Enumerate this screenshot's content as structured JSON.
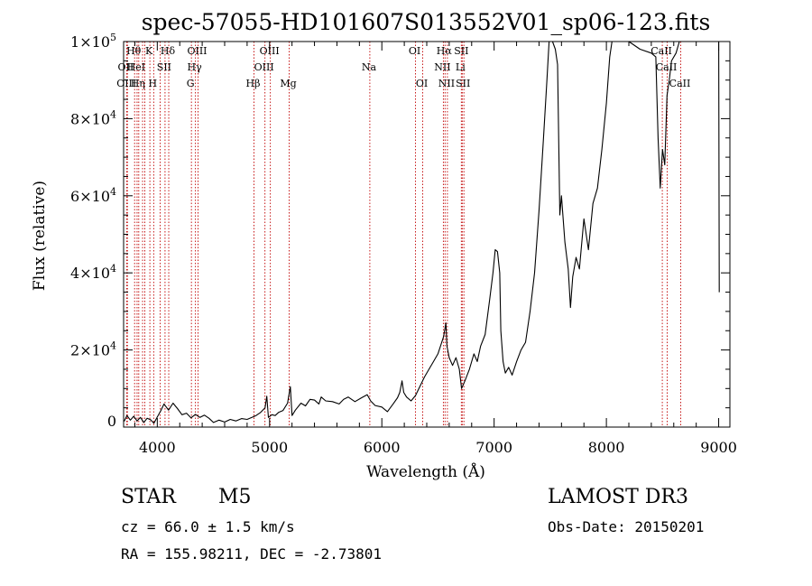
{
  "chart_data": {
    "type": "line",
    "title": "spec-57055-HD101607S013552V01_sp06-123.fits",
    "xlabel": "Wavelength (Å)",
    "ylabel": "Flux (relative)",
    "xlim": [
      3700,
      9100
    ],
    "ylim": [
      0,
      100000
    ],
    "xticks": [
      4000,
      5000,
      6000,
      7000,
      8000,
      9000
    ],
    "yticks": [
      {
        "value": 0,
        "mant": "0",
        "exp": ""
      },
      {
        "value": 20000,
        "mant": "2×10",
        "exp": "4"
      },
      {
        "value": 40000,
        "mant": "4×10",
        "exp": "4"
      },
      {
        "value": 60000,
        "mant": "6×10",
        "exp": "4"
      },
      {
        "value": 80000,
        "mant": "8×10",
        "exp": "4"
      },
      {
        "value": 100000,
        "mant": "1×10",
        "exp": "5"
      }
    ],
    "line_color": "#000000",
    "marker_color": "#c00000",
    "spectrum": [
      [
        3705,
        1500
      ],
      [
        3730,
        3000
      ],
      [
        3760,
        1800
      ],
      [
        3790,
        2800
      ],
      [
        3820,
        1600
      ],
      [
        3850,
        2500
      ],
      [
        3880,
        1200
      ],
      [
        3910,
        2300
      ],
      [
        3940,
        1900
      ],
      [
        3970,
        1000
      ],
      [
        4000,
        2600
      ],
      [
        4030,
        4200
      ],
      [
        4060,
        6000
      ],
      [
        4100,
        4400
      ],
      [
        4140,
        6200
      ],
      [
        4180,
        4800
      ],
      [
        4220,
        3200
      ],
      [
        4260,
        3600
      ],
      [
        4300,
        2400
      ],
      [
        4340,
        3300
      ],
      [
        4380,
        2500
      ],
      [
        4420,
        3100
      ],
      [
        4460,
        2300
      ],
      [
        4500,
        1200
      ],
      [
        4550,
        1800
      ],
      [
        4600,
        1300
      ],
      [
        4650,
        2000
      ],
      [
        4700,
        1600
      ],
      [
        4750,
        2200
      ],
      [
        4800,
        2000
      ],
      [
        4850,
        2600
      ],
      [
        4880,
        3000
      ],
      [
        4920,
        3800
      ],
      [
        4960,
        5000
      ],
      [
        4975,
        8000
      ],
      [
        4990,
        2500
      ],
      [
        5020,
        3200
      ],
      [
        5050,
        3000
      ],
      [
        5080,
        3800
      ],
      [
        5120,
        4300
      ],
      [
        5160,
        6200
      ],
      [
        5185,
        10500
      ],
      [
        5200,
        3000
      ],
      [
        5230,
        4400
      ],
      [
        5280,
        6200
      ],
      [
        5320,
        5500
      ],
      [
        5360,
        7200
      ],
      [
        5400,
        7000
      ],
      [
        5440,
        6000
      ],
      [
        5460,
        7800
      ],
      [
        5500,
        6800
      ],
      [
        5560,
        6600
      ],
      [
        5620,
        6000
      ],
      [
        5660,
        7200
      ],
      [
        5700,
        7800
      ],
      [
        5760,
        6600
      ],
      [
        5820,
        7600
      ],
      [
        5870,
        8400
      ],
      [
        5900,
        6800
      ],
      [
        5940,
        5600
      ],
      [
        6000,
        5200
      ],
      [
        6050,
        4000
      ],
      [
        6100,
        6000
      ],
      [
        6140,
        7600
      ],
      [
        6160,
        9000
      ],
      [
        6180,
        12000
      ],
      [
        6195,
        9000
      ],
      [
        6220,
        7800
      ],
      [
        6260,
        6800
      ],
      [
        6300,
        8200
      ],
      [
        6330,
        10000
      ],
      [
        6380,
        13000
      ],
      [
        6420,
        15000
      ],
      [
        6460,
        17000
      ],
      [
        6500,
        19000
      ],
      [
        6550,
        23500
      ],
      [
        6570,
        27000
      ],
      [
        6580,
        21000
      ],
      [
        6600,
        18000
      ],
      [
        6630,
        16000
      ],
      [
        6660,
        18000
      ],
      [
        6690,
        15000
      ],
      [
        6710,
        10000
      ],
      [
        6740,
        12000
      ],
      [
        6780,
        15000
      ],
      [
        6820,
        19000
      ],
      [
        6850,
        17000
      ],
      [
        6880,
        21000
      ],
      [
        6920,
        24000
      ],
      [
        6960,
        33000
      ],
      [
        6990,
        40000
      ],
      [
        7010,
        46000
      ],
      [
        7030,
        45500
      ],
      [
        7050,
        40000
      ],
      [
        7060,
        25000
      ],
      [
        7080,
        17000
      ],
      [
        7100,
        14000
      ],
      [
        7130,
        15500
      ],
      [
        7160,
        13500
      ],
      [
        7200,
        17000
      ],
      [
        7240,
        20000
      ],
      [
        7280,
        22000
      ],
      [
        7320,
        30000
      ],
      [
        7360,
        40000
      ],
      [
        7400,
        56000
      ],
      [
        7440,
        75000
      ],
      [
        7470,
        90000
      ],
      [
        7490,
        100000
      ],
      [
        7520,
        100000
      ],
      [
        7545,
        98000
      ],
      [
        7565,
        94000
      ],
      [
        7585,
        55000
      ],
      [
        7600,
        60000
      ],
      [
        7630,
        48000
      ],
      [
        7660,
        41000
      ],
      [
        7680,
        31000
      ],
      [
        7700,
        39000
      ],
      [
        7730,
        44000
      ],
      [
        7760,
        41000
      ],
      [
        7800,
        54000
      ],
      [
        7840,
        46000
      ],
      [
        7880,
        58000
      ],
      [
        7920,
        62000
      ],
      [
        7960,
        72000
      ],
      [
        8000,
        84000
      ],
      [
        8030,
        96000
      ],
      [
        8050,
        100000
      ],
      [
        8200,
        100000
      ],
      [
        8300,
        98000
      ],
      [
        8400,
        97000
      ],
      [
        8440,
        96000
      ],
      [
        8460,
        75000
      ],
      [
        8480,
        62000
      ],
      [
        8500,
        72000
      ],
      [
        8520,
        68000
      ],
      [
        8540,
        86000
      ],
      [
        8560,
        90000
      ],
      [
        8580,
        95000
      ],
      [
        8620,
        97000
      ],
      [
        8650,
        100000
      ],
      [
        9000,
        100000
      ],
      [
        9005,
        35000
      ]
    ],
    "lines": [
      {
        "x": 3727,
        "label": "OII",
        "row": 1
      },
      {
        "x": 3734,
        "label": "OIII",
        "row": 2
      },
      {
        "x": 3798,
        "label": "Hθ",
        "row": 0
      },
      {
        "x": 3820,
        "label": "HeI",
        "row": 1
      },
      {
        "x": 3835,
        "label": "Hη",
        "row": 2
      },
      {
        "x": 3869,
        "label": "",
        "row": 0
      },
      {
        "x": 3889,
        "label": "",
        "row": 1
      },
      {
        "x": 3934,
        "label": "K",
        "row": 0
      },
      {
        "x": 3968,
        "label": "H",
        "row": 2
      },
      {
        "x": 4026,
        "label": "",
        "row": 0
      },
      {
        "x": 4069,
        "label": "SII",
        "row": 1
      },
      {
        "x": 4102,
        "label": "Hδ",
        "row": 0
      },
      {
        "x": 4304,
        "label": "G",
        "row": 2
      },
      {
        "x": 4340,
        "label": "Hγ",
        "row": 1
      },
      {
        "x": 4363,
        "label": "OIII",
        "row": 0
      },
      {
        "x": 4861,
        "label": "Hβ",
        "row": 2
      },
      {
        "x": 4959,
        "label": "OIII",
        "row": 1
      },
      {
        "x": 5007,
        "label": "OIII",
        "row": 0
      },
      {
        "x": 5175,
        "label": "Mg",
        "row": 2
      },
      {
        "x": 5893,
        "label": "Na",
        "row": 1
      },
      {
        "x": 6300,
        "label": "OI",
        "row": 0
      },
      {
        "x": 6364,
        "label": "OI",
        "row": 2
      },
      {
        "x": 6548,
        "label": "NII",
        "row": 1
      },
      {
        "x": 6563,
        "label": "Hα",
        "row": 0
      },
      {
        "x": 6584,
        "label": "NII",
        "row": 2
      },
      {
        "x": 6708,
        "label": "Li",
        "row": 1
      },
      {
        "x": 6716,
        "label": "SII",
        "row": 0
      },
      {
        "x": 6731,
        "label": "SII",
        "row": 2
      },
      {
        "x": 8498,
        "label": "CaII",
        "row": 0
      },
      {
        "x": 8542,
        "label": "CaII",
        "row": 1
      },
      {
        "x": 8662,
        "label": "CaII",
        "row": 2
      }
    ]
  },
  "info": {
    "object_class": "STAR",
    "subclass": "M5",
    "survey": "LAMOST DR3",
    "redshift": "cz = 66.0 ± 1.5 km/s",
    "obs_date": "Obs-Date: 20150201",
    "coords": "RA = 155.98211, DEC =  -2.73801"
  }
}
